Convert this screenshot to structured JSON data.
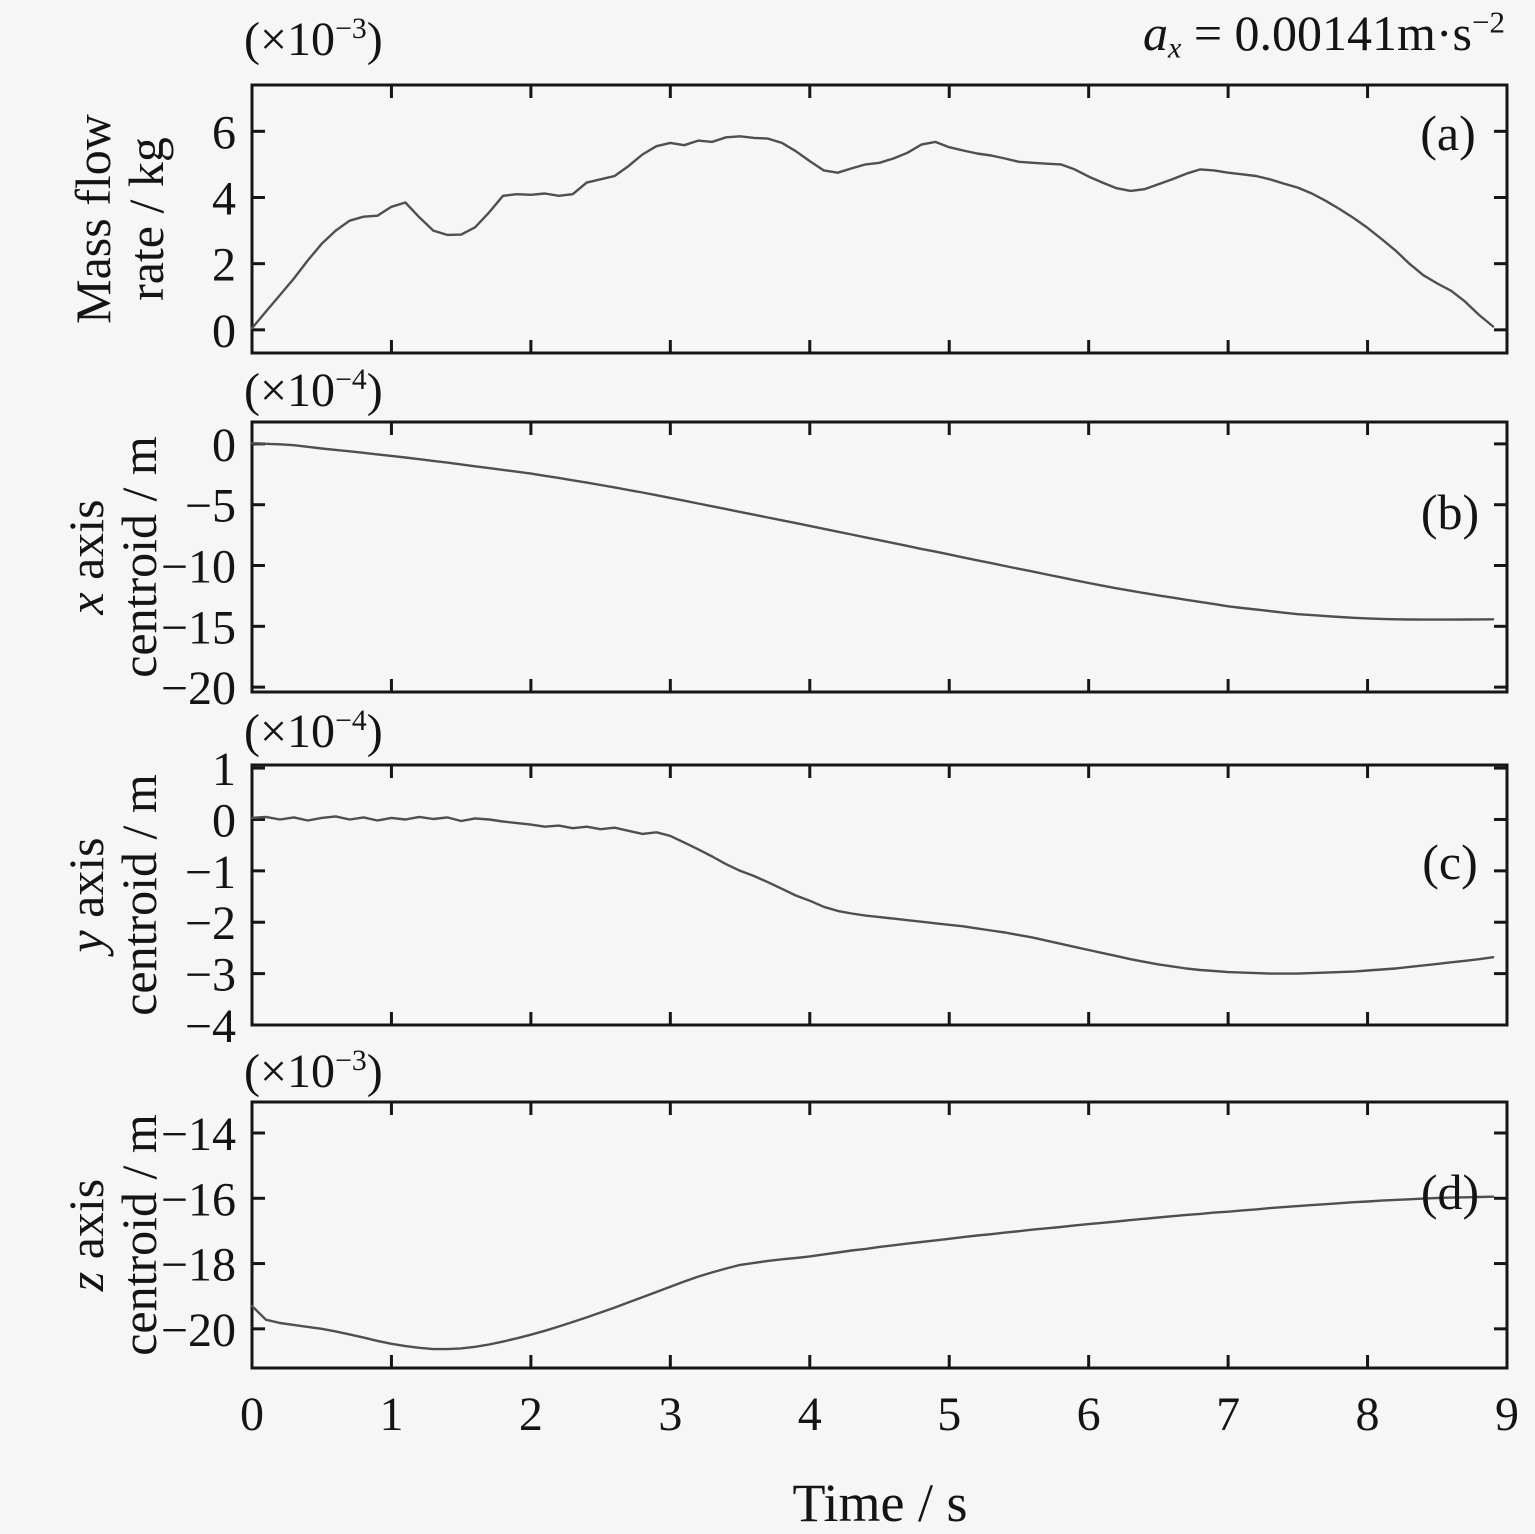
{
  "figure": {
    "title": {
      "var": "a",
      "sub": "x",
      "eq": " = 0.00141m·s",
      "sup": "−2"
    },
    "xlabel": "Time / s",
    "background": "#f6f6f6",
    "frame_color": "#161616",
    "curve_color": "#4f4f4f"
  },
  "chart_data": [
    {
      "type": "line",
      "panel_label": "(a)",
      "scale_prefix": "(×10",
      "scale_exp": "−3",
      "scale_suffix": ")",
      "ylabel_italic": "",
      "ylabel_line1": "Mass flow",
      "ylabel_line2": "rate / kg",
      "yunit": "kg (×10⁻³)",
      "grid": false,
      "legend": "none",
      "xlim": [
        0,
        9
      ],
      "ylim": [
        -0.7,
        7.4
      ],
      "yticks": [
        0,
        2,
        4,
        6
      ],
      "ytick_labels": [
        "0",
        "2",
        "4",
        "6"
      ],
      "xticks": [
        1,
        2,
        3,
        4,
        5,
        6,
        7,
        8
      ],
      "x_range": [
        0,
        8.9
      ],
      "values": [
        0.05,
        0.55,
        1.05,
        1.55,
        2.1,
        2.6,
        3.0,
        3.3,
        3.42,
        3.45,
        3.72,
        3.85,
        3.4,
        3.0,
        2.87,
        2.88,
        3.1,
        3.55,
        4.05,
        4.1,
        4.08,
        4.12,
        4.05,
        4.1,
        4.45,
        4.55,
        4.65,
        4.95,
        5.3,
        5.55,
        5.65,
        5.58,
        5.72,
        5.68,
        5.82,
        5.85,
        5.8,
        5.78,
        5.65,
        5.4,
        5.1,
        4.82,
        4.75,
        4.88,
        5.0,
        5.05,
        5.18,
        5.35,
        5.6,
        5.68,
        5.52,
        5.42,
        5.33,
        5.27,
        5.18,
        5.08,
        5.05,
        5.02,
        5.0,
        4.85,
        4.63,
        4.45,
        4.28,
        4.2,
        4.25,
        4.4,
        4.55,
        4.72,
        4.85,
        4.82,
        4.75,
        4.7,
        4.65,
        4.55,
        4.42,
        4.3,
        4.12,
        3.9,
        3.65,
        3.38,
        3.08,
        2.75,
        2.4,
        2.0,
        1.65,
        1.4,
        1.18,
        0.85,
        0.45,
        0.1
      ]
    },
    {
      "type": "line",
      "panel_label": "(b)",
      "scale_prefix": "(×10",
      "scale_exp": "−4",
      "scale_suffix": ")",
      "ylabel_italic": "x",
      "ylabel_line1": " axis",
      "ylabel_line2": "centroid / m",
      "yunit": "m (×10⁻⁴)",
      "grid": false,
      "legend": "none",
      "xlim": [
        0,
        9
      ],
      "ylim": [
        -20.4,
        1.8
      ],
      "yticks": [
        0,
        -5,
        -10,
        -15,
        -20
      ],
      "ytick_labels": [
        "0",
        "−5",
        "−10",
        "−15",
        "−20"
      ],
      "xticks": [
        1,
        2,
        3,
        4,
        5,
        6,
        7,
        8
      ],
      "x_range": [
        0,
        8.9
      ],
      "values": [
        0.05,
        0.01,
        -0.03,
        -0.11,
        -0.24,
        -0.38,
        -0.49,
        -0.61,
        -0.73,
        -0.86,
        -0.99,
        -1.12,
        -1.26,
        -1.4,
        -1.54,
        -1.69,
        -1.84,
        -1.99,
        -2.14,
        -2.29,
        -2.44,
        -2.62,
        -2.8,
        -2.99,
        -3.18,
        -3.38,
        -3.58,
        -3.79,
        -4.0,
        -4.22,
        -4.44,
        -4.67,
        -4.9,
        -5.13,
        -5.36,
        -5.59,
        -5.82,
        -6.05,
        -6.28,
        -6.51,
        -6.74,
        -6.98,
        -7.22,
        -7.45,
        -7.69,
        -7.92,
        -8.16,
        -8.39,
        -8.63,
        -8.86,
        -9.09,
        -9.33,
        -9.57,
        -9.8,
        -10.04,
        -10.27,
        -10.5,
        -10.74,
        -10.97,
        -11.21,
        -11.44,
        -11.66,
        -11.87,
        -12.07,
        -12.27,
        -12.46,
        -12.64,
        -12.82,
        -12.99,
        -13.17,
        -13.35,
        -13.49,
        -13.62,
        -13.75,
        -13.88,
        -14.0,
        -14.08,
        -14.16,
        -14.23,
        -14.3,
        -14.35,
        -14.39,
        -14.42,
        -14.44,
        -14.45,
        -14.45,
        -14.45,
        -14.44,
        -14.43,
        -14.42
      ]
    },
    {
      "type": "line",
      "panel_label": "(c)",
      "scale_prefix": "(×10",
      "scale_exp": "−4",
      "scale_suffix": ")",
      "ylabel_italic": "y",
      "ylabel_line1": " axis",
      "ylabel_line2": "centroid / m",
      "yunit": "m (×10⁻⁴)",
      "grid": false,
      "legend": "none",
      "xlim": [
        0,
        9
      ],
      "ylim": [
        -4,
        1.06
      ],
      "yticks": [
        1,
        0,
        -1,
        -2,
        -3,
        -4
      ],
      "ytick_labels": [
        "1",
        "0",
        "−1",
        "−2",
        "−3",
        "−4"
      ],
      "xticks": [
        1,
        2,
        3,
        4,
        5,
        6,
        7,
        8
      ],
      "x_range": [
        0,
        8.9
      ],
      "values": [
        0.03,
        0.05,
        0.0,
        0.04,
        -0.02,
        0.03,
        0.06,
        0.0,
        0.04,
        -0.02,
        0.03,
        0.0,
        0.05,
        0.01,
        0.04,
        -0.03,
        0.02,
        0.0,
        -0.04,
        -0.07,
        -0.1,
        -0.14,
        -0.12,
        -0.17,
        -0.14,
        -0.19,
        -0.16,
        -0.22,
        -0.28,
        -0.25,
        -0.32,
        -0.45,
        -0.58,
        -0.72,
        -0.87,
        -1.0,
        -1.1,
        -1.22,
        -1.35,
        -1.48,
        -1.58,
        -1.7,
        -1.78,
        -1.83,
        -1.87,
        -1.9,
        -1.93,
        -1.96,
        -1.99,
        -2.02,
        -2.05,
        -2.08,
        -2.12,
        -2.16,
        -2.2,
        -2.25,
        -2.3,
        -2.36,
        -2.42,
        -2.48,
        -2.54,
        -2.6,
        -2.66,
        -2.72,
        -2.77,
        -2.82,
        -2.86,
        -2.9,
        -2.93,
        -2.95,
        -2.97,
        -2.98,
        -2.99,
        -3.0,
        -3.0,
        -3.0,
        -2.99,
        -2.98,
        -2.97,
        -2.96,
        -2.94,
        -2.92,
        -2.9,
        -2.87,
        -2.84,
        -2.81,
        -2.78,
        -2.75,
        -2.72,
        -2.68
      ]
    },
    {
      "type": "line",
      "panel_label": "(d)",
      "scale_prefix": "(×10",
      "scale_exp": "−3",
      "scale_suffix": ")",
      "ylabel_italic": "z",
      "ylabel_line1": " axis",
      "ylabel_line2": "centroid / m",
      "yunit": "m (×10⁻³)",
      "grid": false,
      "legend": "none",
      "xlim": [
        0,
        9
      ],
      "ylim": [
        -21.2,
        -13.05
      ],
      "yticks": [
        -14,
        -16,
        -18,
        -20
      ],
      "ytick_labels": [
        "−14",
        "−16",
        "−18",
        "−20"
      ],
      "xticks": [
        1,
        2,
        3,
        4,
        5,
        6,
        7,
        8
      ],
      "xtick_labels": [
        "0",
        "1",
        "2",
        "3",
        "4",
        "5",
        "6",
        "7",
        "8",
        "9"
      ],
      "x_range": [
        0,
        8.9
      ],
      "values": [
        -19.3,
        -19.72,
        -19.82,
        -19.88,
        -19.94,
        -20.0,
        -20.08,
        -20.17,
        -20.27,
        -20.37,
        -20.46,
        -20.53,
        -20.58,
        -20.62,
        -20.62,
        -20.6,
        -20.55,
        -20.48,
        -20.39,
        -20.29,
        -20.18,
        -20.06,
        -19.93,
        -19.79,
        -19.65,
        -19.5,
        -19.35,
        -19.19,
        -19.03,
        -18.87,
        -18.71,
        -18.55,
        -18.4,
        -18.27,
        -18.15,
        -18.04,
        -17.98,
        -17.92,
        -17.87,
        -17.83,
        -17.78,
        -17.72,
        -17.66,
        -17.6,
        -17.55,
        -17.49,
        -17.44,
        -17.39,
        -17.34,
        -17.29,
        -17.24,
        -17.19,
        -17.14,
        -17.1,
        -17.05,
        -17.01,
        -16.96,
        -16.92,
        -16.88,
        -16.83,
        -16.79,
        -16.75,
        -16.71,
        -16.67,
        -16.63,
        -16.59,
        -16.55,
        -16.51,
        -16.48,
        -16.44,
        -16.41,
        -16.37,
        -16.34,
        -16.3,
        -16.27,
        -16.24,
        -16.21,
        -16.18,
        -16.15,
        -16.12,
        -16.1,
        -16.07,
        -16.05,
        -16.03,
        -16.01,
        -15.99,
        -15.98,
        -15.97,
        -15.96,
        -15.95
      ]
    }
  ]
}
